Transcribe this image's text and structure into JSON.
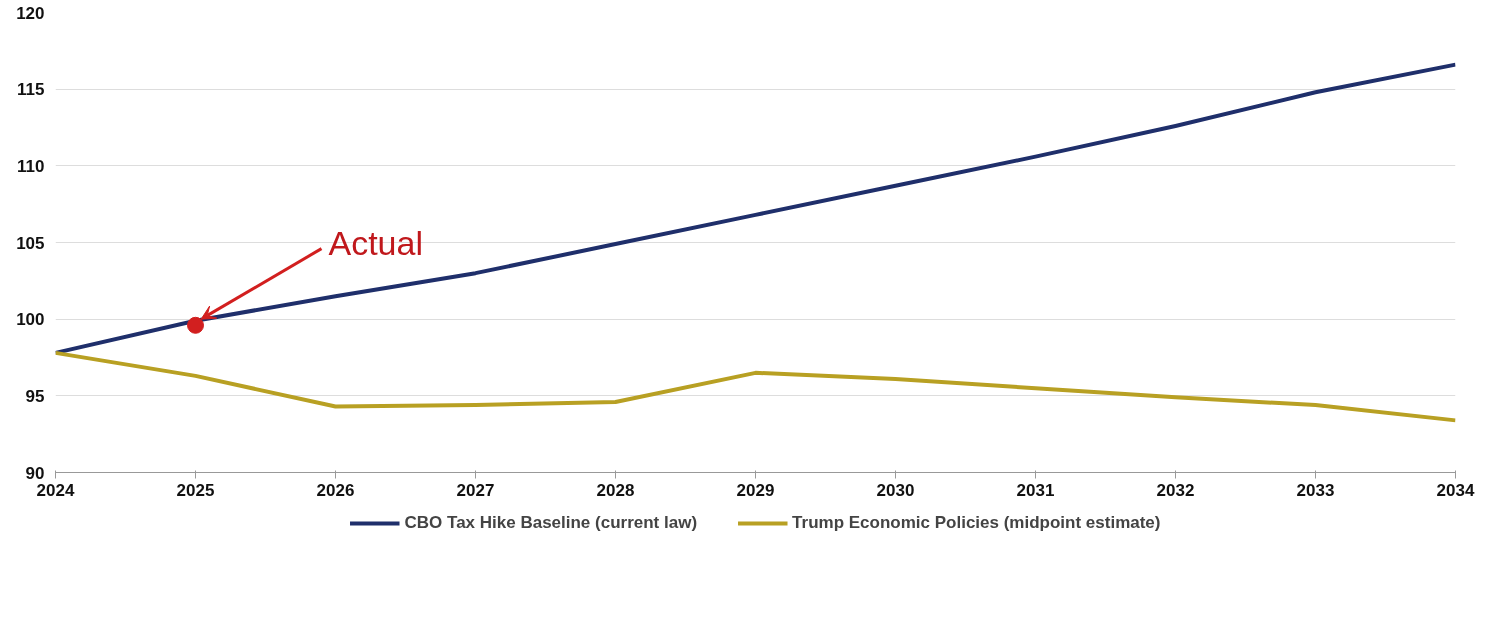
{
  "chart_data": {
    "type": "line",
    "x": [
      2024,
      2025,
      2026,
      2027,
      2028,
      2029,
      2030,
      2031,
      2032,
      2033,
      2034
    ],
    "series": [
      {
        "name": "CBO Tax Hike Baseline (current law)",
        "color": "#1f2f6b",
        "values": [
          97.8,
          99.9,
          101.5,
          103.0,
          104.9,
          106.8,
          108.7,
          110.6,
          112.6,
          114.8,
          116.6
        ]
      },
      {
        "name": "Trump Economic Policies (midpoint estimate)",
        "color": "#b8a023",
        "values": [
          97.8,
          96.3,
          94.3,
          94.4,
          94.6,
          96.5,
          96.1,
          95.5,
          94.9,
          94.4,
          93.4
        ]
      },
      {
        "type": "scatter",
        "marker": "circle",
        "color": "#d21f1f",
        "x": [
          2025
        ],
        "values": [
          99.6
        ]
      }
    ],
    "annotations": [
      {
        "text": "Actual",
        "x": 2025,
        "y": 99.6
      }
    ],
    "xlim": [
      2024,
      2034
    ],
    "xticks": [
      2024,
      2025,
      2026,
      2027,
      2028,
      2029,
      2030,
      2031,
      2032,
      2033,
      2034
    ],
    "ylim": [
      90,
      120
    ],
    "yticks": [
      90,
      95,
      100,
      105,
      110,
      115,
      120
    ],
    "grid": "y",
    "legend": "bottom",
    "marker": "none",
    "line_style": "solid"
  }
}
